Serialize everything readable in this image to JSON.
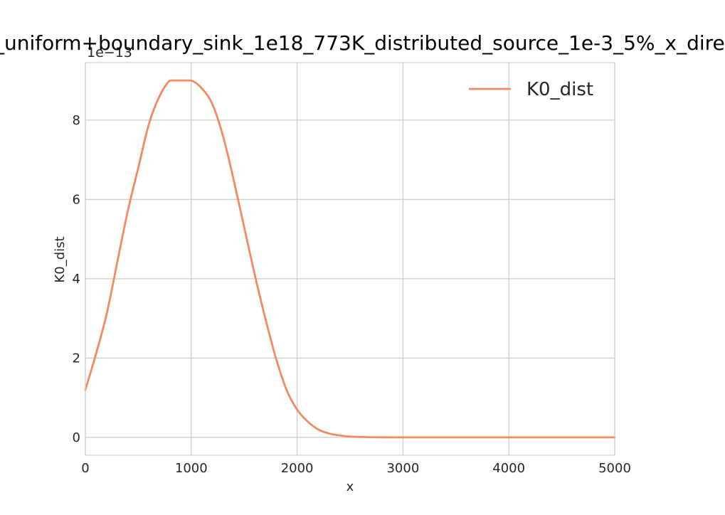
{
  "chart_data": {
    "type": "line",
    "title": "_uniform+boundary_sink_1e18_773K_distributed_source_1e-3_5%_x_dire",
    "xlabel": "x",
    "ylabel": "K0_dist",
    "offset_text": "1e−13",
    "xlim": [
      0,
      5000
    ],
    "ylim": [
      -0.45,
      9.45
    ],
    "x_ticks": [
      0,
      1000,
      2000,
      3000,
      4000,
      5000
    ],
    "x_tick_labels": [
      "0",
      "1000",
      "2000",
      "3000",
      "4000",
      "5000"
    ],
    "y_ticks": [
      0,
      2,
      4,
      6,
      8
    ],
    "y_tick_labels": [
      "0",
      "2",
      "4",
      "6",
      "8"
    ],
    "grid": true,
    "legend_position": "top-right",
    "series": [
      {
        "name": "K0_dist",
        "color": "#f4895f",
        "x": [
          0,
          100,
          200,
          300,
          400,
          500,
          600,
          700,
          800,
          900,
          1000,
          1100,
          1200,
          1300,
          1400,
          1500,
          1600,
          1700,
          1800,
          1900,
          2000,
          2100,
          2200,
          2300,
          2400,
          2500,
          2600,
          2700,
          2800,
          2900,
          3000,
          3500,
          4000,
          4500,
          5000
        ],
        "y": [
          1.2,
          2.1,
          3.1,
          4.4,
          5.7,
          6.8,
          7.9,
          8.6,
          9.0,
          9.0,
          9.0,
          8.8,
          8.4,
          7.6,
          6.5,
          5.3,
          4.1,
          3.0,
          2.0,
          1.2,
          0.7,
          0.4,
          0.2,
          0.1,
          0.05,
          0.02,
          0.01,
          0.005,
          0.002,
          0.001,
          0.0,
          0.0,
          0.0,
          0.0,
          0.0
        ]
      }
    ]
  }
}
